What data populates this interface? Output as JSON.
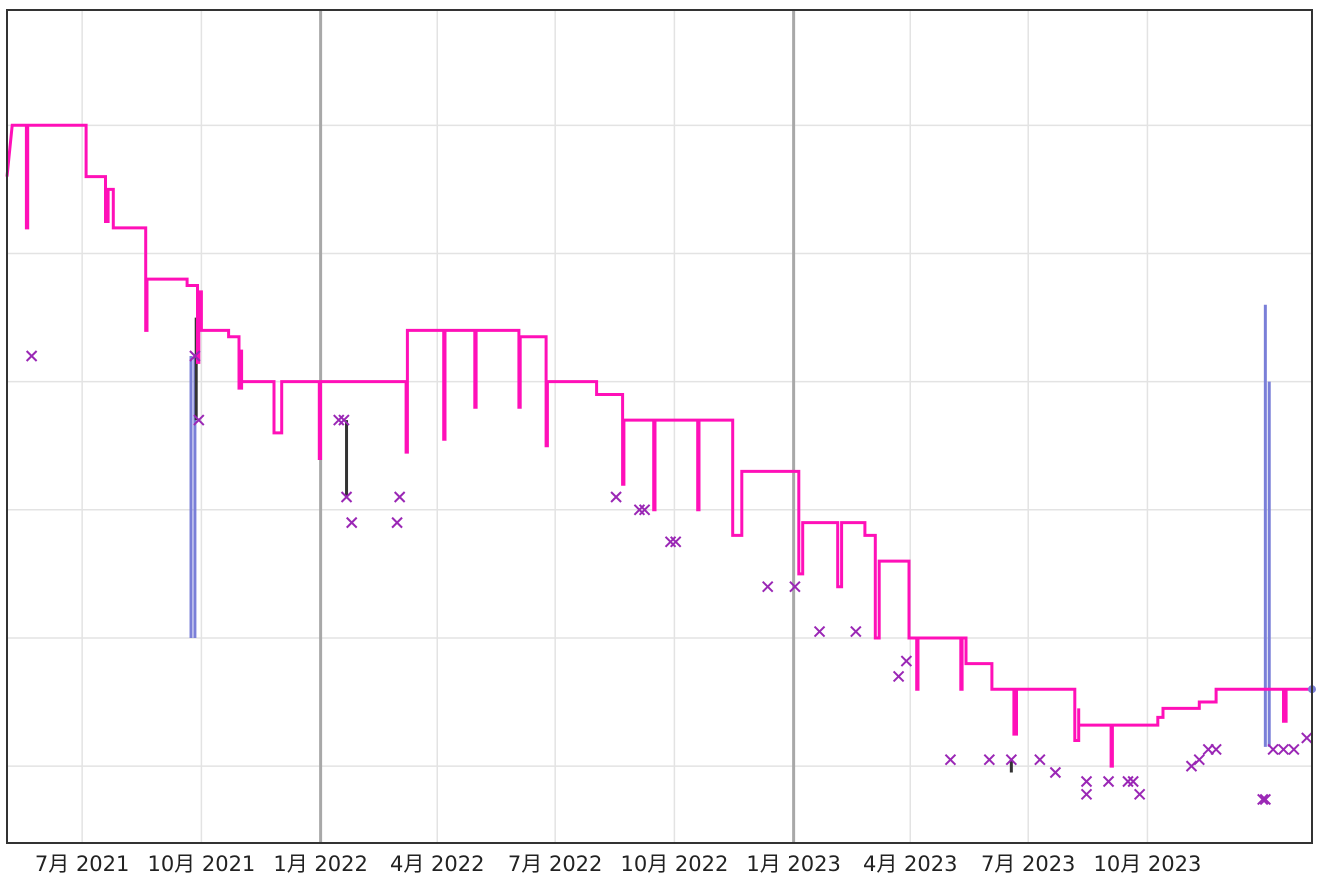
{
  "chart_data": {
    "type": "line",
    "title": "",
    "xlabel": "",
    "ylabel": "",
    "x_tick_labels": [
      "7月 2021",
      "10月 2021",
      "1月 2022",
      "4月 2022",
      "7月 2022",
      "10月 2022",
      "1月 2023",
      "4月 2023",
      "7月 2023",
      "10月 2023"
    ],
    "x_ticks": [
      "2021-07-01",
      "2021-10-01",
      "2022-01-01",
      "2022-04-01",
      "2022-07-01",
      "2022-10-01",
      "2023-01-01",
      "2023-04-01",
      "2023-07-01",
      "2023-10-01"
    ],
    "year_boundaries": [
      "2022-01-01",
      "2023-01-01"
    ],
    "xlim": [
      "2021-05-04",
      "2024-02-05"
    ],
    "ylim": [
      0,
      6.5
    ],
    "y_gridlines": [
      0.6,
      1.6,
      2.6,
      3.6,
      4.6,
      5.6
    ],
    "grid": true,
    "y_tick_labels_visible": false,
    "series": [
      {
        "kind": "step-line",
        "color": "#ff10b8",
        "points": [
          [
            "2021-05-04",
            5.2
          ],
          [
            "2021-05-08",
            5.6
          ],
          [
            "2021-05-19",
            5.6
          ],
          [
            "2021-05-19",
            4.8
          ],
          [
            "2021-05-20",
            4.8
          ],
          [
            "2021-05-20",
            5.6
          ],
          [
            "2021-07-04",
            5.6
          ],
          [
            "2021-07-04",
            5.2
          ],
          [
            "2021-07-19",
            5.2
          ],
          [
            "2021-07-19",
            4.85
          ],
          [
            "2021-07-21",
            4.85
          ],
          [
            "2021-07-21",
            5.1
          ],
          [
            "2021-07-25",
            5.1
          ],
          [
            "2021-07-25",
            4.8
          ],
          [
            "2021-08-19",
            4.8
          ],
          [
            "2021-08-19",
            4.0
          ],
          [
            "2021-08-20",
            4.0
          ],
          [
            "2021-08-20",
            4.4
          ],
          [
            "2021-09-20",
            4.4
          ],
          [
            "2021-09-20",
            4.35
          ],
          [
            "2021-09-28",
            4.35
          ],
          [
            "2021-09-28",
            3.75
          ],
          [
            "2021-09-29",
            3.75
          ],
          [
            "2021-09-29",
            4.3
          ],
          [
            "2021-10-01",
            4.3
          ],
          [
            "2021-10-01",
            4.0
          ],
          [
            "2021-10-22",
            4.0
          ],
          [
            "2021-10-22",
            3.95
          ],
          [
            "2021-10-30",
            3.95
          ],
          [
            "2021-10-30",
            3.55
          ],
          [
            "2021-11-01",
            3.55
          ],
          [
            "2021-11-01",
            3.85
          ],
          [
            "2021-11-01",
            3.6
          ],
          [
            "2021-11-26",
            3.6
          ],
          [
            "2021-11-26",
            3.2
          ],
          [
            "2021-12-02",
            3.2
          ],
          [
            "2021-12-02",
            3.6
          ],
          [
            "2021-12-31",
            3.6
          ],
          [
            "2021-12-31",
            3.0
          ],
          [
            "2022-01-01",
            3.0
          ],
          [
            "2022-01-01",
            3.6
          ],
          [
            "2022-03-08",
            3.6
          ],
          [
            "2022-03-08",
            3.05
          ],
          [
            "2022-03-09",
            3.05
          ],
          [
            "2022-03-09",
            4.0
          ],
          [
            "2022-04-06",
            4.0
          ],
          [
            "2022-04-06",
            3.15
          ],
          [
            "2022-04-07",
            3.15
          ],
          [
            "2022-04-07",
            4.0
          ],
          [
            "2022-04-30",
            4.0
          ],
          [
            "2022-04-30",
            3.4
          ],
          [
            "2022-05-01",
            3.4
          ],
          [
            "2022-05-01",
            4.0
          ],
          [
            "2022-06-03",
            4.0
          ],
          [
            "2022-06-03",
            3.4
          ],
          [
            "2022-06-04",
            3.4
          ],
          [
            "2022-06-04",
            3.95
          ],
          [
            "2022-06-24",
            3.95
          ],
          [
            "2022-06-24",
            3.1
          ],
          [
            "2022-06-25",
            3.1
          ],
          [
            "2022-06-25",
            3.6
          ],
          [
            "2022-08-02",
            3.6
          ],
          [
            "2022-08-02",
            3.5
          ],
          [
            "2022-08-22",
            3.5
          ],
          [
            "2022-08-22",
            2.8
          ],
          [
            "2022-08-23",
            2.8
          ],
          [
            "2022-08-23",
            3.3
          ],
          [
            "2022-09-15",
            3.3
          ],
          [
            "2022-09-15",
            2.6
          ],
          [
            "2022-09-16",
            2.6
          ],
          [
            "2022-09-16",
            3.3
          ],
          [
            "2022-10-19",
            3.3
          ],
          [
            "2022-10-19",
            2.6
          ],
          [
            "2022-10-20",
            2.6
          ],
          [
            "2022-10-20",
            3.3
          ],
          [
            "2022-11-15",
            3.3
          ],
          [
            "2022-11-15",
            2.4
          ],
          [
            "2022-11-22",
            2.4
          ],
          [
            "2022-11-22",
            2.9
          ],
          [
            "2023-01-05",
            2.9
          ],
          [
            "2023-01-05",
            2.1
          ],
          [
            "2023-01-08",
            2.1
          ],
          [
            "2023-01-08",
            2.5
          ],
          [
            "2023-02-04",
            2.5
          ],
          [
            "2023-02-04",
            2.0
          ],
          [
            "2023-02-07",
            2.0
          ],
          [
            "2023-02-07",
            2.5
          ],
          [
            "2023-02-25",
            2.5
          ],
          [
            "2023-02-25",
            2.4
          ],
          [
            "2023-03-05",
            2.4
          ],
          [
            "2023-03-05",
            1.6
          ],
          [
            "2023-03-08",
            1.6
          ],
          [
            "2023-03-08",
            2.2
          ],
          [
            "2023-03-31",
            2.2
          ],
          [
            "2023-03-31",
            1.6
          ],
          [
            "2023-04-06",
            1.6
          ],
          [
            "2023-04-06",
            1.2
          ],
          [
            "2023-04-07",
            1.2
          ],
          [
            "2023-04-07",
            1.6
          ],
          [
            "2023-05-10",
            1.6
          ],
          [
            "2023-05-10",
            1.2
          ],
          [
            "2023-05-11",
            1.2
          ],
          [
            "2023-05-11",
            1.6
          ],
          [
            "2023-05-14",
            1.6
          ],
          [
            "2023-05-14",
            1.4
          ],
          [
            "2023-06-03",
            1.4
          ],
          [
            "2023-06-03",
            1.2
          ],
          [
            "2023-06-20",
            1.2
          ],
          [
            "2023-06-20",
            0.85
          ],
          [
            "2023-06-22",
            0.85
          ],
          [
            "2023-06-22",
            1.2
          ],
          [
            "2023-08-06",
            1.2
          ],
          [
            "2023-08-06",
            0.8
          ],
          [
            "2023-08-09",
            0.8
          ],
          [
            "2023-08-09",
            1.05
          ],
          [
            "2023-08-09",
            0.92
          ],
          [
            "2023-09-03",
            0.92
          ],
          [
            "2023-09-03",
            0.6
          ],
          [
            "2023-09-04",
            0.6
          ],
          [
            "2023-09-04",
            0.92
          ],
          [
            "2023-10-09",
            0.92
          ],
          [
            "2023-10-09",
            0.98
          ],
          [
            "2023-10-13",
            0.98
          ],
          [
            "2023-10-13",
            1.05
          ],
          [
            "2023-11-10",
            1.05
          ],
          [
            "2023-11-10",
            1.1
          ],
          [
            "2023-11-23",
            1.1
          ],
          [
            "2023-11-23",
            1.2
          ],
          [
            "2024-01-14",
            1.2
          ],
          [
            "2024-01-14",
            0.95
          ],
          [
            "2024-01-16",
            0.95
          ],
          [
            "2024-01-16",
            1.2
          ],
          [
            "2024-02-05",
            1.2
          ]
        ]
      },
      {
        "kind": "bars",
        "color": "#7a7fd8",
        "bars": [
          {
            "x": "2021-09-23",
            "y0": 1.6,
            "y1": 3.8
          },
          {
            "x": "2021-09-26",
            "y0": 1.6,
            "y1": 3.8
          },
          {
            "x": "2023-12-31",
            "y0": 0.75,
            "y1": 4.2
          },
          {
            "x": "2024-01-03",
            "y0": 0.75,
            "y1": 3.6
          }
        ]
      },
      {
        "kind": "range-lines",
        "color": "#333333",
        "ranges": [
          {
            "x": "2021-09-27",
            "y0": 3.3,
            "y1": 4.1
          },
          {
            "x": "2022-01-21",
            "y0": 2.7,
            "y1": 3.3
          },
          {
            "x": "2023-06-18",
            "y0": 0.55,
            "y1": 0.65
          }
        ]
      },
      {
        "kind": "scatter",
        "marker": "x",
        "color": "#9a27b5",
        "points": [
          [
            "2021-05-23",
            3.8
          ],
          [
            "2021-09-26",
            3.8
          ],
          [
            "2021-09-29",
            3.3
          ],
          [
            "2022-01-15",
            3.3
          ],
          [
            "2022-01-19",
            3.3
          ],
          [
            "2022-01-21",
            2.7
          ],
          [
            "2022-01-25",
            2.5
          ],
          [
            "2022-03-01",
            2.5
          ],
          [
            "2022-03-03",
            2.7
          ],
          [
            "2022-08-17",
            2.7
          ],
          [
            "2022-09-04",
            2.6
          ],
          [
            "2022-09-08",
            2.6
          ],
          [
            "2022-09-28",
            2.35
          ],
          [
            "2022-10-02",
            2.35
          ],
          [
            "2022-12-12",
            2.0
          ],
          [
            "2023-01-02",
            2.0
          ],
          [
            "2023-01-21",
            1.65
          ],
          [
            "2023-02-18",
            1.65
          ],
          [
            "2023-03-23",
            1.3
          ],
          [
            "2023-03-29",
            1.42
          ],
          [
            "2023-05-02",
            0.65
          ],
          [
            "2023-06-01",
            0.65
          ],
          [
            "2023-06-18",
            0.65
          ],
          [
            "2023-07-10",
            0.65
          ],
          [
            "2023-07-22",
            0.55
          ],
          [
            "2023-08-15",
            0.48
          ],
          [
            "2023-08-15",
            0.38
          ],
          [
            "2023-09-01",
            0.48
          ],
          [
            "2023-09-16",
            0.48
          ],
          [
            "2023-09-20",
            0.48
          ],
          [
            "2023-09-25",
            0.38
          ],
          [
            "2023-11-04",
            0.6
          ],
          [
            "2023-11-10",
            0.65
          ],
          [
            "2023-11-17",
            0.73
          ],
          [
            "2023-11-23",
            0.73
          ],
          [
            "2023-12-29",
            0.34
          ],
          [
            "2023-12-31",
            0.34
          ],
          [
            "2024-01-06",
            0.73
          ],
          [
            "2024-01-14",
            0.73
          ],
          [
            "2024-01-22",
            0.73
          ],
          [
            "2024-02-01",
            0.82
          ]
        ]
      },
      {
        "kind": "endpoint",
        "color": "#7a7fd8",
        "points": [
          [
            "2024-02-05",
            1.2
          ]
        ]
      }
    ]
  }
}
